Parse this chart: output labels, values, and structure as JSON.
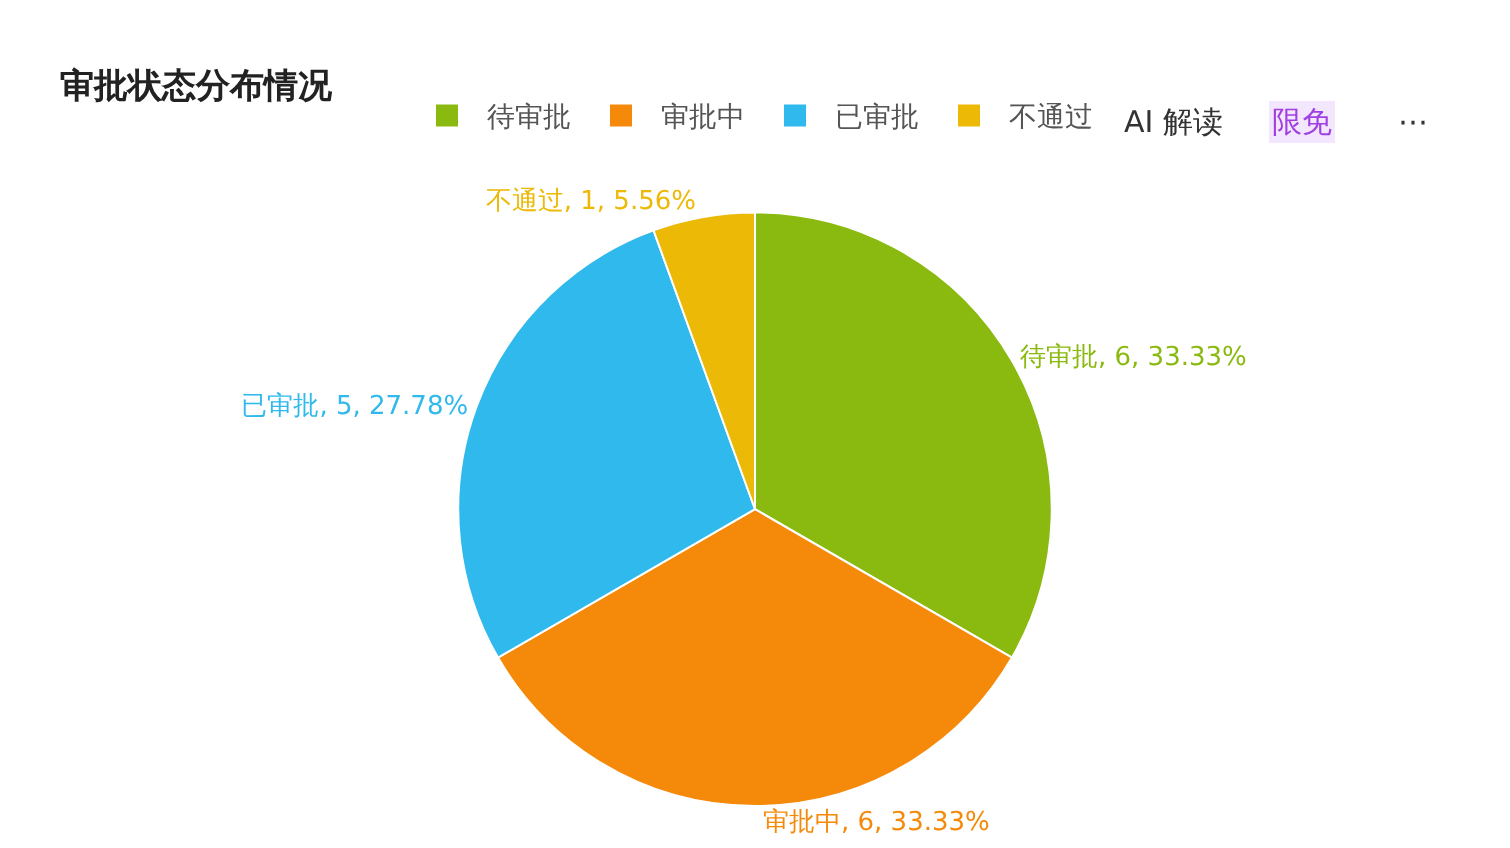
{
  "chart_data": {
    "type": "pie",
    "title": "审批状态分布情况",
    "categories": [
      "待审批",
      "审批中",
      "已审批",
      "不通过"
    ],
    "values": [
      6,
      6,
      5,
      1
    ],
    "colors": [
      "#8aba10",
      "#f58a0a",
      "#2fb9ec",
      "#ecb906"
    ],
    "value_labels": [
      "待审批, 6, 33.33%",
      "审批中, 6, 33.33%",
      "已审批, 5, 27.78%",
      "不通过, 1, 5.56%"
    ],
    "legend": "top",
    "annotations": [
      "AI 解读",
      "限免",
      "⋯"
    ]
  }
}
